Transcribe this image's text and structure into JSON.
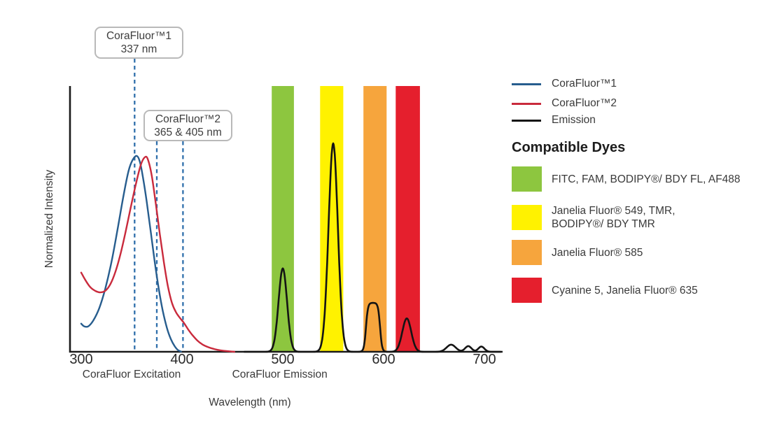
{
  "chart_data": {
    "type": "line",
    "title": "",
    "xlabel": "Wavelength (nm)",
    "ylabel": "Normalized Intensity",
    "x_axis": {
      "min": 300,
      "max": 717,
      "ticks": [
        300,
        400,
        500,
        600,
        700
      ],
      "grid": false
    },
    "y_axis": {
      "min": 0,
      "max": 1.27,
      "ticks": [],
      "grid": false
    },
    "legend_position": "right",
    "series": [
      {
        "name": "CoraFluor™1",
        "color": "#275d8e",
        "role": "excitation",
        "points": [
          [
            300,
            0.135
          ],
          [
            303,
            0.122
          ],
          [
            307,
            0.122
          ],
          [
            312,
            0.15
          ],
          [
            318,
            0.21
          ],
          [
            324,
            0.305
          ],
          [
            330,
            0.43
          ],
          [
            336,
            0.585
          ],
          [
            342,
            0.75
          ],
          [
            347,
            0.868
          ],
          [
            351,
            0.92
          ],
          [
            355,
            0.94
          ],
          [
            358,
            0.915
          ],
          [
            361,
            0.845
          ],
          [
            365,
            0.72
          ],
          [
            369,
            0.575
          ],
          [
            373,
            0.43
          ],
          [
            377,
            0.3
          ],
          [
            381,
            0.195
          ],
          [
            385,
            0.115
          ],
          [
            389,
            0.06
          ],
          [
            393,
            0.025
          ],
          [
            396,
            0.008
          ],
          [
            399,
            0.001
          ]
        ]
      },
      {
        "name": "CoraFluor™2",
        "color": "#c92a3c",
        "role": "excitation",
        "points": [
          [
            300,
            0.38
          ],
          [
            304,
            0.345
          ],
          [
            309,
            0.31
          ],
          [
            314,
            0.292
          ],
          [
            319,
            0.285
          ],
          [
            324,
            0.293
          ],
          [
            329,
            0.325
          ],
          [
            334,
            0.385
          ],
          [
            339,
            0.47
          ],
          [
            344,
            0.575
          ],
          [
            349,
            0.69
          ],
          [
            354,
            0.8
          ],
          [
            359,
            0.895
          ],
          [
            363,
            0.933
          ],
          [
            366,
            0.925
          ],
          [
            370,
            0.845
          ],
          [
            374,
            0.71
          ],
          [
            378,
            0.565
          ],
          [
            382,
            0.43
          ],
          [
            386,
            0.315
          ],
          [
            390,
            0.235
          ],
          [
            394,
            0.19
          ],
          [
            398,
            0.162
          ],
          [
            402,
            0.138
          ],
          [
            406,
            0.108
          ],
          [
            410,
            0.082
          ],
          [
            415,
            0.055
          ],
          [
            420,
            0.036
          ],
          [
            426,
            0.022
          ],
          [
            432,
            0.013
          ],
          [
            438,
            0.007
          ],
          [
            445,
            0.003
          ],
          [
            452,
            0.0
          ]
        ]
      },
      {
        "name": "Emission",
        "color": "#141414",
        "role": "emission",
        "baseline": {
          "from_nm": 462,
          "to_nm": 716
        },
        "peaks": [
          {
            "shape": "gauss",
            "center": 500,
            "height": 0.4,
            "sigma": 4.2
          },
          {
            "shape": "gauss",
            "center": 550,
            "height": 1.0,
            "sigma": 4.6
          },
          {
            "shape": "plateau",
            "from": 582.5,
            "to": 596.5,
            "height": 0.235,
            "softness": 1.0
          },
          {
            "shape": "gauss",
            "center": 623,
            "height": 0.16,
            "sigma": 4.4
          },
          {
            "shape": "gauss",
            "center": 667,
            "height": 0.034,
            "sigma": 4.5
          },
          {
            "shape": "gauss",
            "center": 684,
            "height": 0.027,
            "sigma": 3.2
          },
          {
            "shape": "gauss",
            "center": 697,
            "height": 0.025,
            "sigma": 3.0
          }
        ]
      }
    ],
    "filter_bands": [
      {
        "name": "green",
        "color": "#8dc63f",
        "from_nm": 489,
        "to_nm": 511
      },
      {
        "name": "yellow",
        "color": "#fff200",
        "from_nm": 537,
        "to_nm": 560
      },
      {
        "name": "orange",
        "color": "#f6a53d",
        "from_nm": 580,
        "to_nm": 603
      },
      {
        "name": "red",
        "color": "#e51f2d",
        "from_nm": 612,
        "to_nm": 636
      }
    ],
    "marker_lines": {
      "color": "#2f6fab",
      "drawn_nm": [
        353,
        375,
        401
      ]
    },
    "annotations": [
      {
        "title": "CoraFluor™1",
        "value": "337 nm",
        "marker_nm": [
          337
        ]
      },
      {
        "title": "CoraFluor™2",
        "value": "365 & 405 nm",
        "marker_nm": [
          365,
          405
        ]
      }
    ],
    "x_group_labels": [
      {
        "text": "CoraFluor Excitation",
        "center_nm": 350
      },
      {
        "text": "CoraFluor Emission",
        "center_nm": 497
      }
    ]
  },
  "compatible_dyes": {
    "heading": "Compatible Dyes",
    "items": [
      {
        "color": "#8dc63f",
        "lines": [
          "FITC, FAM, BODIPY®/ BDY FL, AF488"
        ]
      },
      {
        "color": "#fff200",
        "lines": [
          "Janelia Fluor® 549, TMR,",
          "BODIPY®/ BDY TMR"
        ]
      },
      {
        "color": "#f6a53d",
        "lines": [
          "Janelia Fluor® 585"
        ]
      },
      {
        "color": "#e51f2d",
        "lines": [
          "Cyanine 5, Janelia Fluor® 635"
        ]
      }
    ]
  }
}
